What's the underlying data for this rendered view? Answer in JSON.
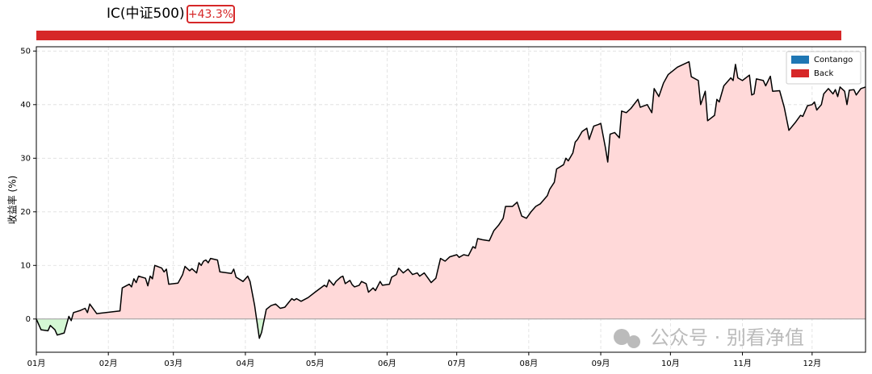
{
  "chart_data": {
    "type": "line",
    "title": "IC(中证500)",
    "badge": "+43.3%",
    "ylabel": "收益率 (%)",
    "watermark": "公众号 · 别看净值",
    "legend_position": "upper right",
    "legend": [
      {
        "label": "Contango",
        "color": "#1f77b4"
      },
      {
        "label": "Back",
        "color": "#d62728"
      }
    ],
    "grid": true,
    "xlim": [
      1,
      358
    ],
    "ylim": [
      -6.2,
      50.8
    ],
    "xticks": [
      {
        "value": 1,
        "label": "01月"
      },
      {
        "value": 32,
        "label": "02月"
      },
      {
        "value": 60,
        "label": "03月"
      },
      {
        "value": 91,
        "label": "04月"
      },
      {
        "value": 121,
        "label": "05月"
      },
      {
        "value": 152,
        "label": "06月"
      },
      {
        "value": 182,
        "label": "07月"
      },
      {
        "value": 213,
        "label": "08月"
      },
      {
        "value": 244,
        "label": "09月"
      },
      {
        "value": 274,
        "label": "10月"
      },
      {
        "value": 305,
        "label": "11月"
      },
      {
        "value": 335,
        "label": "12月"
      }
    ],
    "yticks": [
      0,
      10,
      20,
      30,
      40,
      50
    ],
    "x": [
      1,
      3,
      6,
      7,
      9,
      10,
      13,
      15,
      16,
      17,
      20,
      22,
      23,
      24,
      27,
      37,
      38,
      41,
      42,
      43,
      44,
      45,
      48,
      49,
      50,
      51,
      52,
      55,
      56,
      57,
      58,
      62,
      64,
      65,
      67,
      68,
      70,
      71,
      72,
      73,
      74,
      75,
      76,
      79,
      80,
      85,
      86,
      87,
      90,
      92,
      93,
      95,
      97,
      98,
      100,
      102,
      104,
      106,
      108,
      111,
      112,
      113,
      115,
      118,
      121,
      125,
      126,
      127,
      129,
      130,
      132,
      133,
      134,
      136,
      137,
      138,
      140,
      141,
      143,
      144,
      146,
      147,
      149,
      150,
      153,
      154,
      156,
      157,
      159,
      161,
      163,
      165,
      166,
      168,
      170,
      171,
      173,
      175,
      177,
      179,
      182,
      183,
      185,
      187,
      189,
      190,
      191,
      193,
      196,
      198,
      200,
      202,
      203,
      206,
      208,
      210,
      212,
      214,
      216,
      218,
      221,
      222,
      224,
      225,
      228,
      229,
      230,
      232,
      233,
      234,
      236,
      238,
      239,
      241,
      243,
      244,
      246,
      247,
      248,
      250,
      252,
      253,
      255,
      257,
      260,
      261,
      264,
      266,
      267,
      269,
      271,
      273,
      277,
      282,
      283,
      286,
      287,
      289,
      290,
      293,
      294,
      295,
      297,
      300,
      301,
      302,
      303,
      305,
      308,
      309,
      310,
      311,
      314,
      315,
      317,
      318,
      321,
      323,
      325,
      328,
      330,
      331,
      333,
      335,
      336,
      337,
      339,
      340,
      342,
      344,
      345,
      346,
      347,
      349,
      350,
      351,
      353,
      354,
      356,
      358
    ],
    "series": [
      {
        "color": "#000000",
        "pos_fill": "#ffd9d9",
        "neg_fill": "#d4f7d4",
        "values": [
          0,
          -2,
          -2.2,
          -1.2,
          -2,
          -3,
          -2.6,
          0.5,
          -0.3,
          1.2,
          1.6,
          2,
          1.2,
          2.8,
          1,
          1.5,
          5.8,
          6.5,
          6,
          7.5,
          6.8,
          8,
          7.6,
          6.2,
          8,
          7.5,
          10,
          9.5,
          8.8,
          9.3,
          6.5,
          6.7,
          8.3,
          9.8,
          9,
          9.4,
          8.6,
          10.5,
          10,
          10.8,
          11,
          10.5,
          11.3,
          11,
          8.8,
          8.5,
          9.3,
          7.8,
          7,
          8,
          7,
          2.5,
          -3.6,
          -2.5,
          1.8,
          2.5,
          2.8,
          2,
          2.2,
          3.8,
          3.5,
          3.8,
          3.3,
          4,
          5,
          6.3,
          6,
          7.3,
          6.3,
          7,
          7.8,
          8,
          6.6,
          7.2,
          6.4,
          6,
          6.3,
          7,
          6.6,
          5,
          5.8,
          5.3,
          7,
          6.3,
          6.5,
          7.8,
          8.3,
          9.5,
          8.6,
          9.3,
          8.3,
          8.6,
          8,
          8.6,
          7.4,
          6.8,
          7.6,
          11.3,
          10.8,
          11.6,
          12,
          11.5,
          12,
          11.8,
          13.5,
          13.2,
          15,
          14.8,
          14.6,
          16.5,
          17.5,
          18.8,
          21,
          21,
          21.8,
          19.2,
          18.8,
          20,
          21,
          21.5,
          23,
          24.2,
          25.5,
          28,
          28.8,
          30,
          29.5,
          31,
          33,
          33.5,
          35,
          35.6,
          33.5,
          36,
          36.3,
          36.5,
          32,
          29.3,
          34.5,
          34.8,
          33.8,
          38.8,
          38.5,
          39.3,
          41,
          39.5,
          40,
          38.5,
          43,
          41.5,
          44,
          45.6,
          47,
          48,
          45.2,
          44.5,
          40,
          42.5,
          37,
          38,
          41,
          40.5,
          43.5,
          45,
          44.5,
          47.5,
          45,
          44.5,
          45.5,
          41.8,
          42,
          44.8,
          44.5,
          43.5,
          45.3,
          42.5,
          42.6,
          39.5,
          35.2,
          36.8,
          38,
          37.8,
          39.8,
          40,
          40.5,
          39,
          40,
          42,
          43,
          42,
          42.8,
          41.5,
          43.3,
          42.5,
          40,
          42.7,
          42.8,
          41.8,
          43,
          43.3
        ]
      }
    ]
  }
}
